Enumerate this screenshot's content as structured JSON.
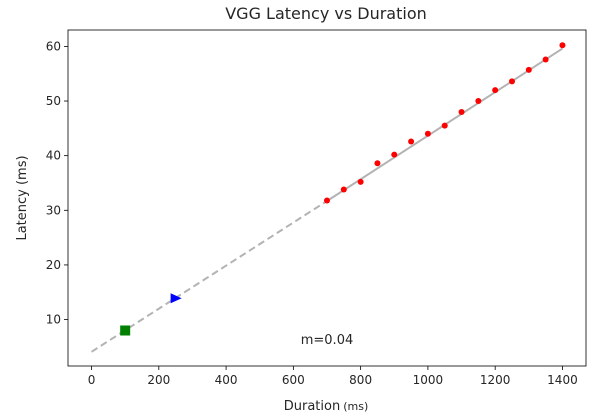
{
  "chart_data": {
    "type": "scatter",
    "title": "VGG Latency vs Duration",
    "xlabel": "Duration",
    "xlabel_unit": "(ms)",
    "ylabel": "Latency (ms)",
    "xlim": [
      -70,
      1470
    ],
    "ylim": [
      1.5,
      63
    ],
    "xticks": [
      0,
      200,
      400,
      600,
      800,
      1000,
      1200,
      1400
    ],
    "yticks": [
      10,
      20,
      30,
      40,
      50,
      60
    ],
    "grid": false,
    "series": [
      {
        "marker": "circle",
        "color": "#ff0000",
        "points": [
          [
            700,
            31.8
          ],
          [
            750,
            33.8
          ],
          [
            800,
            35.2
          ],
          [
            850,
            38.6
          ],
          [
            900,
            40.2
          ],
          [
            950,
            42.6
          ],
          [
            1000,
            44.0
          ],
          [
            1050,
            45.5
          ],
          [
            1100,
            48.0
          ],
          [
            1150,
            50.0
          ],
          [
            1200,
            52.0
          ],
          [
            1250,
            53.6
          ],
          [
            1300,
            55.7
          ],
          [
            1350,
            57.6
          ],
          [
            1400,
            60.2
          ]
        ]
      },
      {
        "marker": "square",
        "color": "#008000",
        "points": [
          [
            100,
            8.0
          ]
        ]
      },
      {
        "marker": "triangle-right",
        "color": "#0000ff",
        "points": [
          [
            250,
            13.9
          ]
        ]
      }
    ],
    "fit_line": {
      "color": "#b3b3b3",
      "dashed_from": [
        0,
        4.1
      ],
      "dashed_to": [
        700,
        31.7
      ],
      "solid_from": [
        700,
        31.7
      ],
      "solid_to": [
        1400,
        59.6
      ]
    },
    "annotation": {
      "text": "m=0.04",
      "x": 700,
      "y": 5.5
    }
  }
}
